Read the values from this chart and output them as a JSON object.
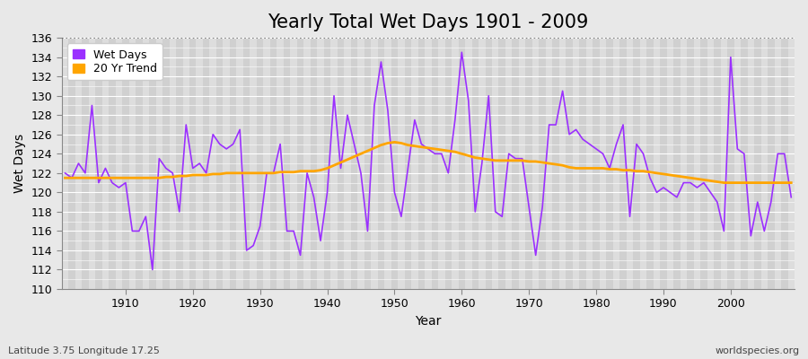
{
  "title": "Yearly Total Wet Days 1901 - 2009",
  "xlabel": "Year",
  "ylabel": "Wet Days",
  "lat_lon_label": "Latitude 3.75 Longitude 17.25",
  "source_label": "worldspecies.org",
  "years": [
    1901,
    1902,
    1903,
    1904,
    1905,
    1906,
    1907,
    1908,
    1909,
    1910,
    1911,
    1912,
    1913,
    1914,
    1915,
    1916,
    1917,
    1918,
    1919,
    1920,
    1921,
    1922,
    1923,
    1924,
    1925,
    1926,
    1927,
    1928,
    1929,
    1930,
    1931,
    1932,
    1933,
    1934,
    1935,
    1936,
    1937,
    1938,
    1939,
    1940,
    1941,
    1942,
    1943,
    1944,
    1945,
    1946,
    1947,
    1948,
    1949,
    1950,
    1951,
    1952,
    1953,
    1954,
    1955,
    1956,
    1957,
    1958,
    1959,
    1960,
    1961,
    1962,
    1963,
    1964,
    1965,
    1966,
    1967,
    1968,
    1969,
    1970,
    1971,
    1972,
    1973,
    1974,
    1975,
    1976,
    1977,
    1978,
    1979,
    1980,
    1981,
    1982,
    1983,
    1984,
    1985,
    1986,
    1987,
    1988,
    1989,
    1990,
    1991,
    1992,
    1993,
    1994,
    1995,
    1996,
    1997,
    1998,
    1999,
    2000,
    2001,
    2002,
    2003,
    2004,
    2005,
    2006,
    2007,
    2008,
    2009
  ],
  "wet_days": [
    122,
    121.5,
    123,
    122,
    129,
    121,
    122.5,
    121,
    120.5,
    121,
    116,
    116,
    117.5,
    112,
    123.5,
    122.5,
    122,
    118,
    127,
    122.5,
    123,
    122,
    126,
    125,
    124.5,
    125,
    126.5,
    114,
    114.5,
    116.5,
    122,
    122,
    125,
    116,
    116,
    113.5,
    122,
    119.5,
    115,
    120,
    130,
    122.5,
    128,
    125,
    122,
    116,
    129,
    133.5,
    128.5,
    120,
    117.5,
    122.5,
    127.5,
    125,
    124.5,
    124,
    124,
    122,
    127.5,
    134.5,
    129.5,
    118,
    123,
    130,
    118,
    117.5,
    124,
    123.5,
    123.5,
    118.5,
    113.5,
    118.5,
    127,
    127,
    130.5,
    126,
    126.5,
    125.5,
    125,
    124.5,
    124,
    122.5,
    125,
    127,
    117.5,
    125,
    124,
    121.5,
    120,
    120.5,
    120,
    119.5,
    121,
    121,
    120.5,
    121,
    120,
    119,
    116,
    134,
    124.5,
    124,
    115.5,
    119,
    116,
    119,
    124,
    124,
    119.5
  ],
  "trend_values": [
    121.5,
    121.5,
    121.5,
    121.5,
    121.5,
    121.5,
    121.5,
    121.5,
    121.5,
    121.5,
    121.5,
    121.5,
    121.5,
    121.5,
    121.5,
    121.6,
    121.6,
    121.7,
    121.7,
    121.8,
    121.8,
    121.8,
    121.9,
    121.9,
    122.0,
    122.0,
    122.0,
    122.0,
    122.0,
    122.0,
    122.0,
    122.0,
    122.1,
    122.1,
    122.1,
    122.2,
    122.2,
    122.2,
    122.3,
    122.5,
    122.8,
    123.1,
    123.4,
    123.7,
    124.0,
    124.3,
    124.6,
    124.9,
    125.1,
    125.2,
    125.1,
    124.9,
    124.8,
    124.7,
    124.6,
    124.5,
    124.4,
    124.3,
    124.2,
    124.0,
    123.8,
    123.6,
    123.5,
    123.4,
    123.3,
    123.3,
    123.3,
    123.3,
    123.3,
    123.2,
    123.2,
    123.1,
    123.0,
    122.9,
    122.8,
    122.6,
    122.5,
    122.5,
    122.5,
    122.5,
    122.5,
    122.4,
    122.4,
    122.3,
    122.3,
    122.2,
    122.2,
    122.1,
    122.0,
    121.9,
    121.8,
    121.7,
    121.6,
    121.5,
    121.4,
    121.3,
    121.2,
    121.1,
    121.0,
    121.0,
    121.0,
    121.0,
    121.0,
    121.0,
    121.0,
    121.0,
    121.0,
    121.0,
    121.0
  ],
  "wet_days_color": "#9B30FF",
  "trend_color": "#FFA500",
  "background_color": "#E8E8E8",
  "plot_bg_color": "#D8D8D8",
  "grid_color": "#FFFFFF",
  "ylim": [
    110,
    136
  ],
  "xlim": [
    1901,
    2009
  ],
  "ytick_step": 2,
  "hline_y": 136,
  "title_fontsize": 15,
  "label_fontsize": 10,
  "tick_fontsize": 9
}
